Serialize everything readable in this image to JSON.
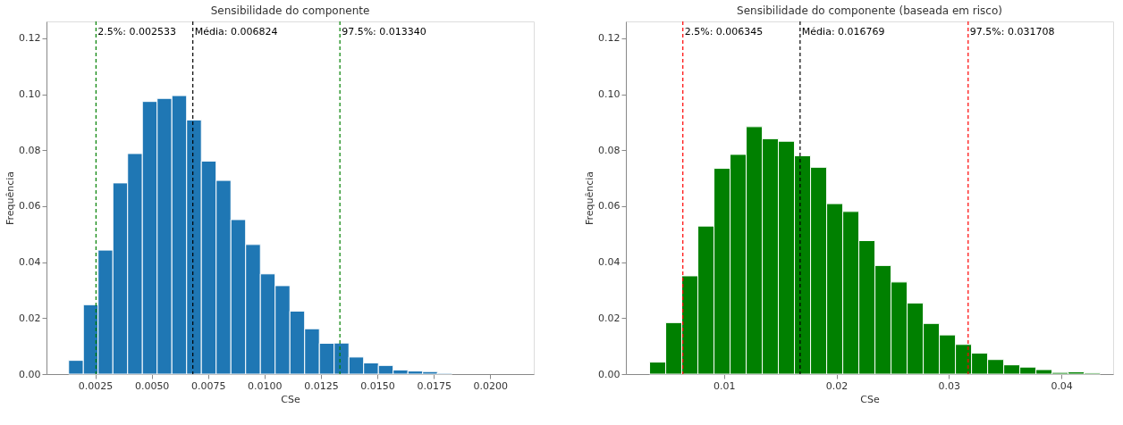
{
  "chart_data": [
    {
      "type": "histogram",
      "title": "Sensibilidade do componente",
      "xlabel": "CSe",
      "ylabel": "Frequência",
      "color": "#1f77b4",
      "grid": false,
      "bins": [
        0.00132,
        0.001974,
        0.002627,
        0.003281,
        0.003934,
        0.004588,
        0.005242,
        0.005895,
        0.006549,
        0.007202,
        0.007856,
        0.00851,
        0.009163,
        0.009817,
        0.01047,
        0.011124,
        0.011778,
        0.012431,
        0.013085,
        0.013738,
        0.014392,
        0.015046,
        0.015699,
        0.016353,
        0.017006,
        0.01766,
        0.018314,
        0.018967,
        0.01962
      ],
      "values": [
        0.0049,
        0.0248,
        0.0443,
        0.0683,
        0.0788,
        0.0974,
        0.0985,
        0.0995,
        0.0908,
        0.0761,
        0.0692,
        0.0552,
        0.0463,
        0.0358,
        0.0316,
        0.0225,
        0.0162,
        0.011,
        0.0111,
        0.0061,
        0.004,
        0.0031,
        0.0015,
        0.0011,
        0.0009,
        0.0003,
        null,
        null
      ],
      "xlim": [
        0.00034,
        0.02193
      ],
      "ylim": [
        0,
        0.126
      ],
      "xticks": [
        {
          "value": 0.0025,
          "label": "0.0025"
        },
        {
          "value": 0.005,
          "label": "0.0050"
        },
        {
          "value": 0.0075,
          "label": "0.0075"
        },
        {
          "value": 0.01,
          "label": "0.0100"
        },
        {
          "value": 0.0125,
          "label": "0.0125"
        },
        {
          "value": 0.015,
          "label": "0.0150"
        },
        {
          "value": 0.0175,
          "label": "0.0175"
        },
        {
          "value": 0.02,
          "label": "0.0200"
        }
      ],
      "yticks": [
        {
          "value": 0,
          "label": "0.00"
        },
        {
          "value": 0.02,
          "label": "0.02"
        },
        {
          "value": 0.04,
          "label": "0.04"
        },
        {
          "value": 0.06,
          "label": "0.06"
        },
        {
          "value": 0.08,
          "label": "0.08"
        },
        {
          "value": 0.1,
          "label": "0.10"
        },
        {
          "value": 0.12,
          "label": "0.12"
        }
      ],
      "ref_lines": [
        {
          "axis": "x",
          "value": 0.002533,
          "label": "2.5%: 0.002533",
          "color": "#008000",
          "line_style": "dashed"
        },
        {
          "axis": "x",
          "value": 0.006824,
          "label": "Média: 0.006824",
          "color": "#000000",
          "line_style": "dashed"
        },
        {
          "axis": "x",
          "value": 0.01334,
          "label": "97.5%: 0.013340",
          "color": "#008000",
          "line_style": "dashed"
        }
      ]
    },
    {
      "type": "histogram",
      "title": "Sensibilidade do componente (baseada em risco)",
      "xlabel": "CSe",
      "ylabel": "Frequência",
      "color": "#008000",
      "grid": false,
      "bins": [
        0.00339,
        0.004821,
        0.006252,
        0.007683,
        0.009114,
        0.010545,
        0.011976,
        0.013407,
        0.014838,
        0.016269,
        0.0177,
        0.019131,
        0.020562,
        0.021993,
        0.023424,
        0.024855,
        0.026286,
        0.027717,
        0.029148,
        0.030579,
        0.03201,
        0.033441,
        0.034872,
        0.036303,
        0.037734,
        0.039165,
        0.040596,
        0.042027,
        0.043458
      ],
      "values": [
        0.0043,
        0.0184,
        0.0351,
        0.0529,
        0.0735,
        0.0785,
        0.0884,
        0.0841,
        0.0832,
        0.078,
        0.0739,
        0.0609,
        0.0581,
        0.0477,
        0.0388,
        0.0329,
        0.0254,
        0.0181,
        0.014,
        0.0106,
        0.0075,
        0.0052,
        0.0033,
        0.0025,
        0.0016,
        0.0006,
        0.0008,
        0.0004
      ],
      "xlim": [
        0.00128,
        0.0446
      ],
      "ylim": [
        0,
        0.126
      ],
      "xticks": [
        0.01,
        0.02,
        0.03,
        0.04
      ],
      "yticks": [
        {
          "value": 0,
          "label": "0.00"
        },
        {
          "value": 0.02,
          "label": "0.02"
        },
        {
          "value": 0.04,
          "label": "0.04"
        },
        {
          "value": 0.06,
          "label": "0.06"
        },
        {
          "value": 0.08,
          "label": "0.08"
        },
        {
          "value": 0.1,
          "label": "0.10"
        },
        {
          "value": 0.12,
          "label": "0.12"
        }
      ],
      "ref_lines": [
        {
          "axis": "x",
          "value": 0.006345,
          "label": "2.5%: 0.006345",
          "color": "#ff0000",
          "line_style": "dashed"
        },
        {
          "axis": "x",
          "value": 0.016769,
          "label": "Média: 0.016769",
          "color": "#000000",
          "line_style": "dashed"
        },
        {
          "axis": "x",
          "value": 0.031708,
          "label": "97.5%: 0.031708",
          "color": "#ff0000",
          "line_style": "dashed"
        }
      ]
    }
  ]
}
